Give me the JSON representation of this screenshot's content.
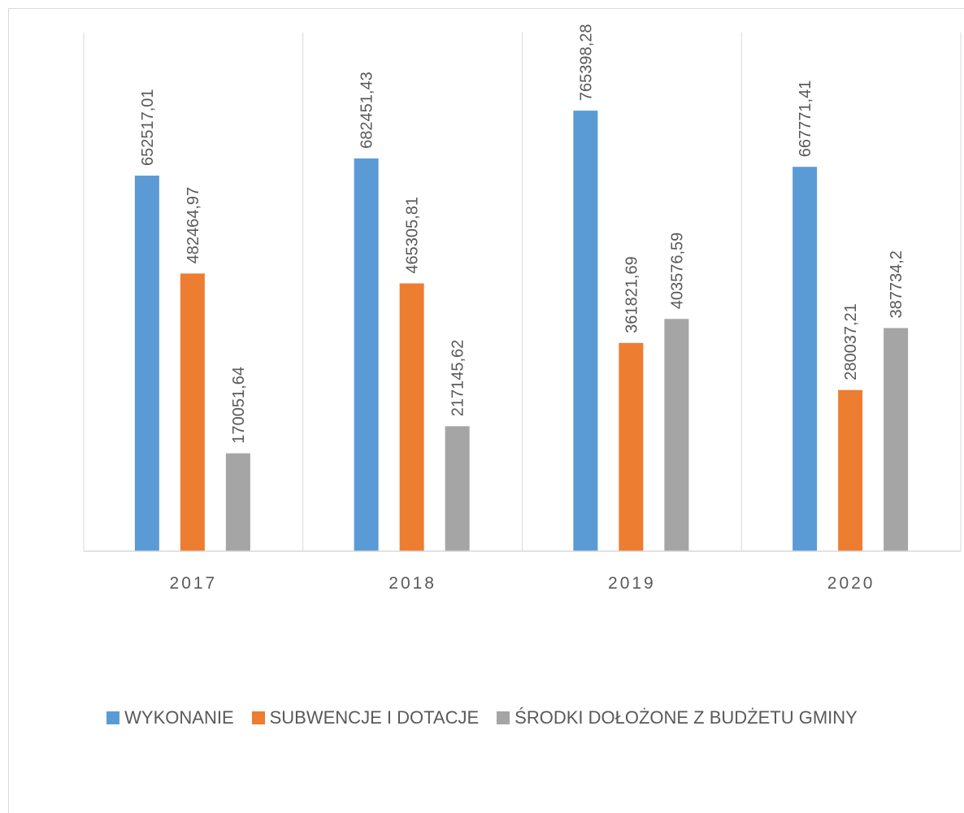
{
  "chart_data": {
    "type": "bar",
    "title": "",
    "xlabel": "",
    "ylabel": "",
    "categories": [
      "2017",
      "2018",
      "2019",
      "2020"
    ],
    "series": [
      {
        "name": "WYKONANIE",
        "color": "#5b9bd5",
        "values": [
          652517.01,
          682451.43,
          765398.28,
          667771.41
        ],
        "labels": [
          "652517,01",
          "682451,43",
          "765398,28",
          "667771,41"
        ]
      },
      {
        "name": "SUBWENCJE I DOTACJE",
        "color": "#ed7d31",
        "values": [
          482464.97,
          465305.81,
          361821.69,
          280037.21
        ],
        "labels": [
          "482464,97",
          "465305,81",
          "361821,69",
          "280037,21"
        ]
      },
      {
        "name": "ŚRODKI DOŁOŻONE Z BUDŻETU GMINY",
        "color": "#a5a5a5",
        "values": [
          170051.64,
          217145.62,
          403576.59,
          387734.2
        ],
        "labels": [
          "170051,64",
          "217145,62",
          "403576,59",
          "387734,2"
        ]
      }
    ],
    "ylim": [
      0,
      800000
    ],
    "grid": false,
    "legend_position": "bottom"
  }
}
